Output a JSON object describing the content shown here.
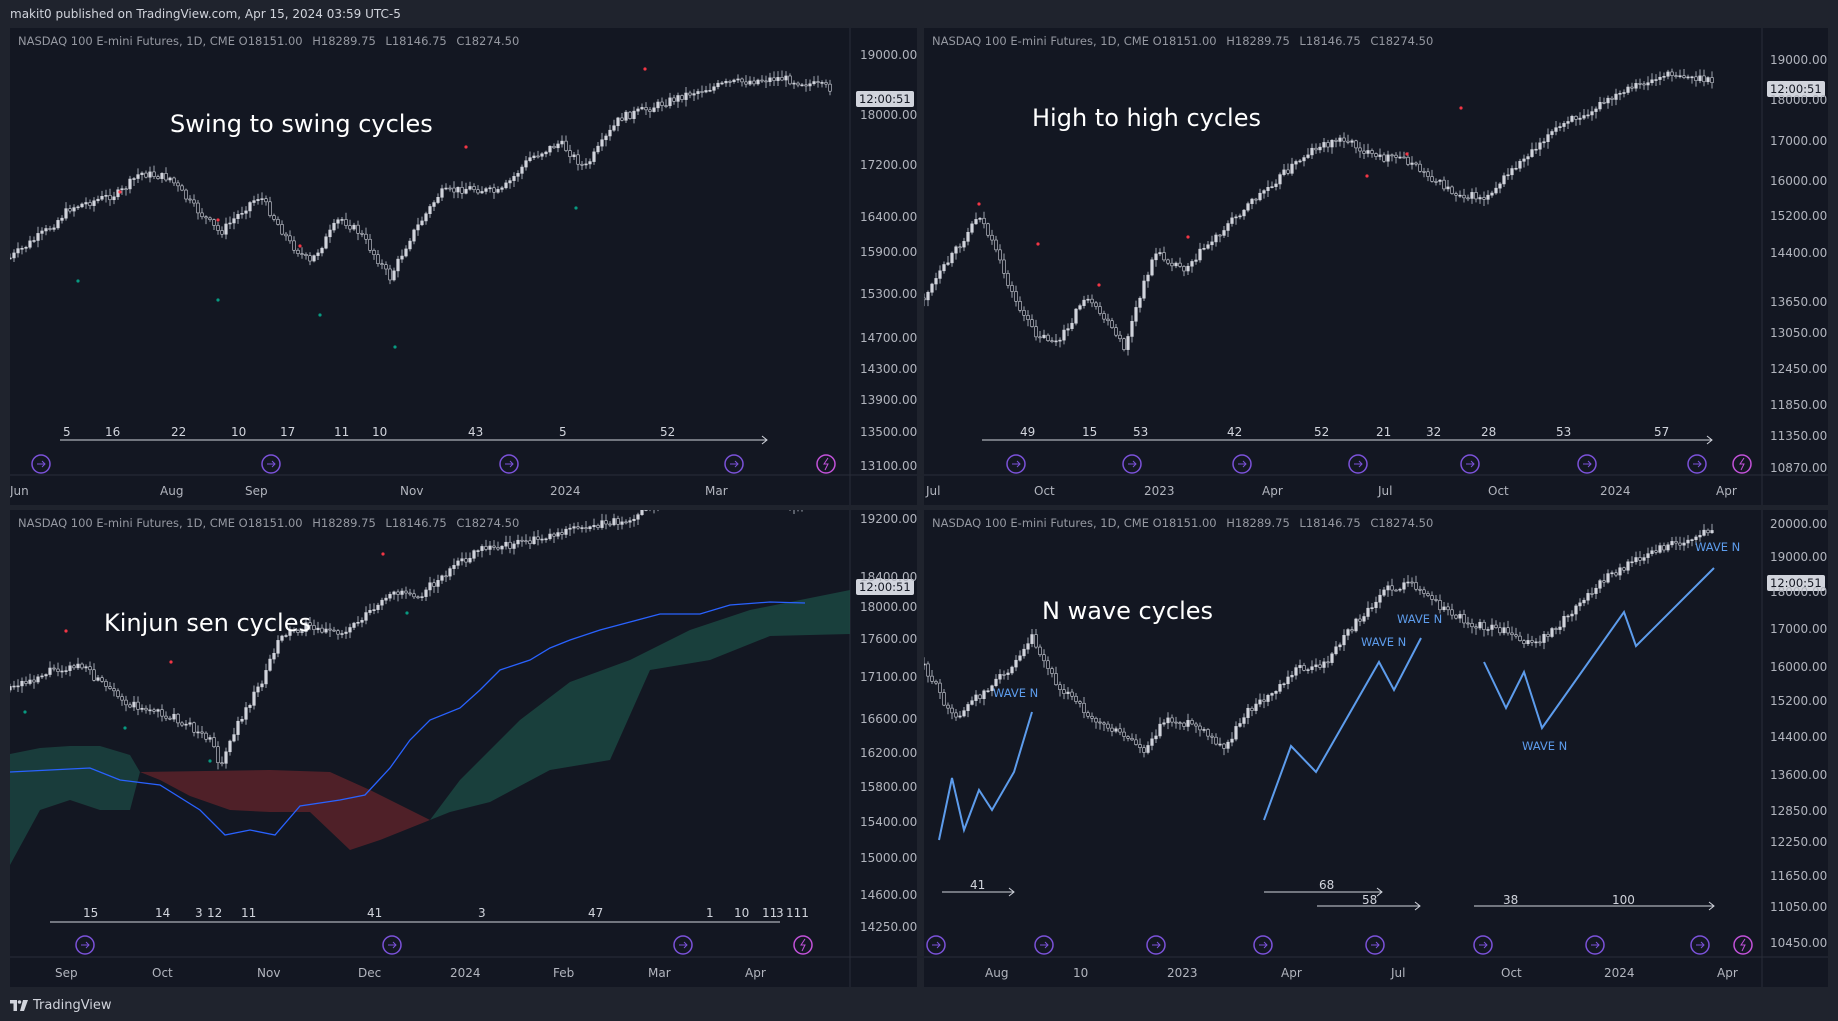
{
  "header": {
    "published": "makit0 published on TradingView.com, Apr 15, 2024 03:59 UTC-5"
  },
  "footer": {
    "brand": "TradingView"
  },
  "legend": {
    "symbol": "NASDAQ 100 E-mini Futures, 1D, CME",
    "open_label": "O",
    "open": "18151.00",
    "high_label": "H",
    "high": "18289.75",
    "low_label": "L",
    "low": "18146.75",
    "close_label": "C",
    "close": "18274.50"
  },
  "colors": {
    "background": "#131722",
    "frame": "#1f232d",
    "candle": "#d1d4dc",
    "swing_high": "#f23645",
    "swing_low": "#089981",
    "kijun": "#2962ff",
    "cloud_bull": "#1c4a44",
    "cloud_bear": "#5b2229",
    "wave": "#5d9cec",
    "event_icon": "#7b52d9"
  },
  "panels": [
    {
      "annotation": "Swing to swing cycles",
      "price_tag": "12:00:51",
      "y_labels": [
        "19000.00",
        "18000.00",
        "17200.00",
        "16400.00",
        "15900.00",
        "15300.00",
        "14700.00",
        "14300.00",
        "13900.00",
        "13500.00",
        "13100.00"
      ],
      "x_labels": [
        "Jun",
        "Aug",
        "Sep",
        "Nov",
        "2024",
        "Mar"
      ],
      "cycle_counts": [
        "5",
        "16",
        "22",
        "10",
        "17",
        "11",
        "10",
        "43",
        "5",
        "52"
      ]
    },
    {
      "annotation": "High to high cycles",
      "price_tag": "12:00:51",
      "y_labels": [
        "19000.00",
        "18000.00",
        "17000.00",
        "16000.00",
        "15200.00",
        "14400.00",
        "13650.00",
        "13050.00",
        "12450.00",
        "11850.00",
        "11350.00",
        "10870.00"
      ],
      "x_labels": [
        "Jul",
        "Oct",
        "2023",
        "Apr",
        "Jul",
        "Oct",
        "2024",
        "Apr"
      ],
      "cycle_counts": [
        "49",
        "15",
        "53",
        "42",
        "52",
        "21",
        "32",
        "28",
        "53",
        "57"
      ]
    },
    {
      "annotation": "Kinjun sen cycles",
      "price_tag": "12:00:51",
      "y_labels": [
        "19200.00",
        "18400.00",
        "18000.00",
        "17600.00",
        "17100.00",
        "16600.00",
        "16200.00",
        "15800.00",
        "15400.00",
        "15000.00",
        "14600.00",
        "14250.00"
      ],
      "x_labels": [
        "Sep",
        "Oct",
        "Nov",
        "Dec",
        "2024",
        "Feb",
        "Mar",
        "Apr"
      ],
      "cycle_counts": [
        "15",
        "14",
        "3",
        "12",
        "11",
        "41",
        "3",
        "47",
        "1",
        "10",
        "11",
        "3",
        "111"
      ]
    },
    {
      "annotation": "N wave cycles",
      "price_tag": "12:00:51",
      "y_labels": [
        "20000.00",
        "19000.00",
        "18000.00",
        "17000.00",
        "16000.00",
        "15200.00",
        "14400.00",
        "13600.00",
        "12850.00",
        "12250.00",
        "11650.00",
        "11050.00",
        "10450.00"
      ],
      "x_labels": [
        "Aug",
        "10",
        "2023",
        "Apr",
        "Jul",
        "Oct",
        "2024",
        "Apr"
      ],
      "cycle_counts": [
        "41",
        "68",
        "58",
        "38",
        "100"
      ],
      "wave_labels": [
        "WAVE N",
        "WAVE N",
        "WAVE N",
        "WAVE N",
        "WAVE N"
      ]
    }
  ]
}
